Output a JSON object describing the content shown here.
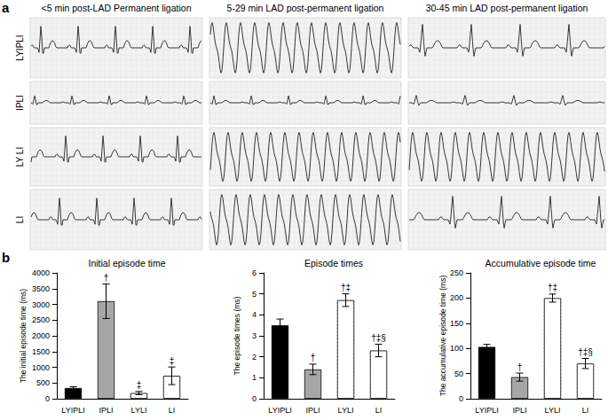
{
  "figure": {
    "panel_labels": [
      "a",
      "b"
    ],
    "ecg": {
      "columns": [
        "<5 min post-LAD Permanent ligation",
        "5-29 min LAD post-permanent ligation",
        "30-45 min LAD post-permanent ligation"
      ],
      "rows": [
        "LYIPLI",
        "IPLI",
        "LY LI",
        "LI"
      ]
    }
  },
  "chart_data": [
    {
      "type": "bar",
      "title": "Initial episode time",
      "y_label": "The initial episode time (ms)",
      "categories": [
        "LYIPLI",
        "IPLI",
        "LYLI",
        "LI"
      ],
      "values": [
        340,
        3100,
        180,
        730
      ],
      "errors": [
        40,
        550,
        50,
        280
      ],
      "annotations": [
        null,
        "†",
        "‡",
        "‡"
      ],
      "colors": [
        "#000000",
        "#a6a6a6",
        "#ffffff",
        "#ffffff"
      ],
      "ylim": [
        0,
        4000
      ],
      "yticks": [
        0,
        500,
        1000,
        1500,
        2000,
        2500,
        3000,
        3500,
        4000
      ]
    },
    {
      "type": "bar",
      "title": "Episode times",
      "y_label": "The episode times (ms)",
      "categories": [
        "LYIPLI",
        "IPLI",
        "LYLI",
        "LI"
      ],
      "values": [
        3.5,
        1.4,
        4.7,
        2.3
      ],
      "errors": [
        0.3,
        0.25,
        0.3,
        0.3
      ],
      "annotations": [
        null,
        "†",
        "†‡",
        "†‡§"
      ],
      "colors": [
        "#000000",
        "#a6a6a6",
        "#ffffff",
        "#ffffff"
      ],
      "ylim": [
        0,
        6
      ],
      "yticks": [
        0,
        1,
        2,
        3,
        4,
        5,
        6
      ]
    },
    {
      "type": "bar",
      "title": "Accumulative episode time",
      "y_label": "The accumulative episode time (ms)",
      "categories": [
        "LYIPLI",
        "IPLI",
        "LYLI",
        "LI"
      ],
      "values": [
        103,
        43,
        200,
        70
      ],
      "errors": [
        5,
        8,
        8,
        10
      ],
      "annotations": [
        null,
        "†",
        "†‡",
        "†‡§"
      ],
      "colors": [
        "#000000",
        "#a6a6a6",
        "#ffffff",
        "#ffffff"
      ],
      "ylim": [
        0,
        250
      ],
      "yticks": [
        0,
        50,
        100,
        150,
        200,
        250
      ]
    }
  ]
}
